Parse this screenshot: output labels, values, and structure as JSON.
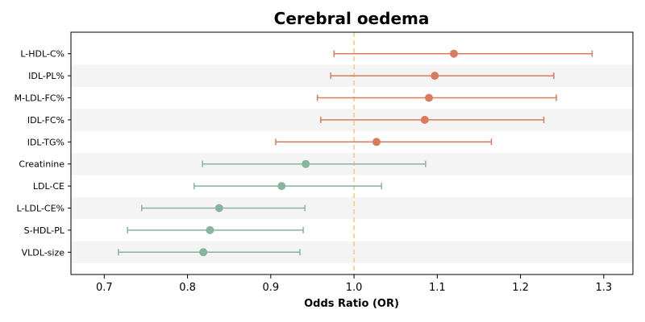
{
  "chart_data": {
    "type": "scatter",
    "subtype": "forest-plot",
    "title": "Cerebral oedema",
    "xlabel": "Odds Ratio (OR)",
    "ylabel": "",
    "xlim": [
      0.66,
      1.335
    ],
    "xticks": [
      "0.7",
      "0.8",
      "0.9",
      "1.0",
      "1.1",
      "1.2",
      "1.3"
    ],
    "reference_line": 1.0,
    "grid": false,
    "row_banding": true,
    "colors": {
      "increase": "#d97b5f",
      "decrease": "#85b59c",
      "reference": "#f5c97a",
      "band": "#f4f4f4"
    },
    "rows": [
      {
        "label": "L-HDL-C%",
        "or": 1.12,
        "lower": 0.976,
        "upper": 1.286,
        "color": "#d97b5f"
      },
      {
        "label": "IDL-PL%",
        "or": 1.097,
        "lower": 0.972,
        "upper": 1.24,
        "color": "#d97b5f"
      },
      {
        "label": "M-LDL-FC%",
        "or": 1.09,
        "lower": 0.956,
        "upper": 1.243,
        "color": "#d97b5f"
      },
      {
        "label": "IDL-FC%",
        "or": 1.085,
        "lower": 0.96,
        "upper": 1.228,
        "color": "#d97b5f"
      },
      {
        "label": "IDL-TG%",
        "or": 1.027,
        "lower": 0.906,
        "upper": 1.165,
        "color": "#d97b5f"
      },
      {
        "label": "Creatinine",
        "or": 0.942,
        "lower": 0.818,
        "upper": 1.086,
        "color": "#85b59c"
      },
      {
        "label": "LDL-CE",
        "or": 0.913,
        "lower": 0.808,
        "upper": 1.033,
        "color": "#85b59c"
      },
      {
        "label": "L-LDL-CE%",
        "or": 0.838,
        "lower": 0.745,
        "upper": 0.941,
        "color": "#85b59c"
      },
      {
        "label": "S-HDL-PL",
        "or": 0.827,
        "lower": 0.728,
        "upper": 0.939,
        "color": "#85b59c"
      },
      {
        "label": "VLDL-size",
        "or": 0.819,
        "lower": 0.717,
        "upper": 0.935,
        "color": "#85b59c"
      }
    ]
  }
}
